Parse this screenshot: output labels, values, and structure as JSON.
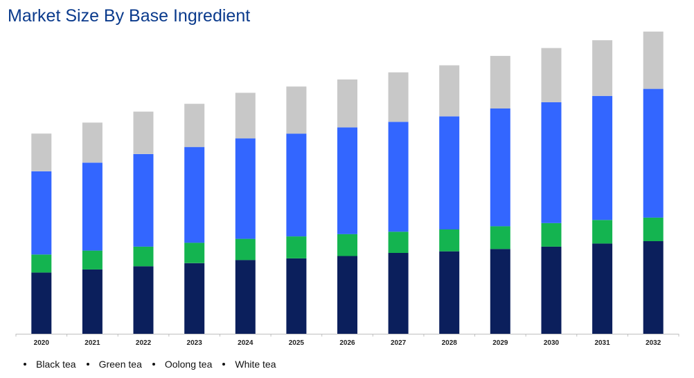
{
  "chart_data": {
    "type": "bar",
    "stacked": true,
    "title": "Market Size By Base Ingredient",
    "xlabel": "",
    "ylabel": "",
    "categories": [
      "2020",
      "2021",
      "2022",
      "2023",
      "2024",
      "2025",
      "2026",
      "2027",
      "2028",
      "2029",
      "2030",
      "2031",
      "2032"
    ],
    "series": [
      {
        "name": "Black tea",
        "color": "#0b1f5c",
        "values": [
          78,
          82,
          86,
          90,
          94,
          96,
          99,
          103,
          105,
          108,
          111,
          115,
          118
        ]
      },
      {
        "name": "Green tea",
        "color": "#14b450",
        "values": [
          23,
          24,
          25,
          26,
          27,
          28,
          28,
          27,
          28,
          29,
          30,
          30,
          30
        ]
      },
      {
        "name": "Oolong tea",
        "color": "#3366ff",
        "values": [
          106,
          112,
          118,
          122,
          128,
          131,
          136,
          140,
          144,
          150,
          154,
          158,
          164
        ]
      },
      {
        "name": "White tea",
        "color": "#c8c8c8",
        "values": [
          48,
          51,
          54,
          55,
          58,
          60,
          61,
          63,
          65,
          67,
          69,
          71,
          73
        ]
      }
    ],
    "ylim": [
      0,
      390
    ],
    "grid": false,
    "legend_position": "bottom-left"
  },
  "legend": [
    "Black tea",
    "Green tea",
    "Oolong tea",
    "White tea"
  ]
}
